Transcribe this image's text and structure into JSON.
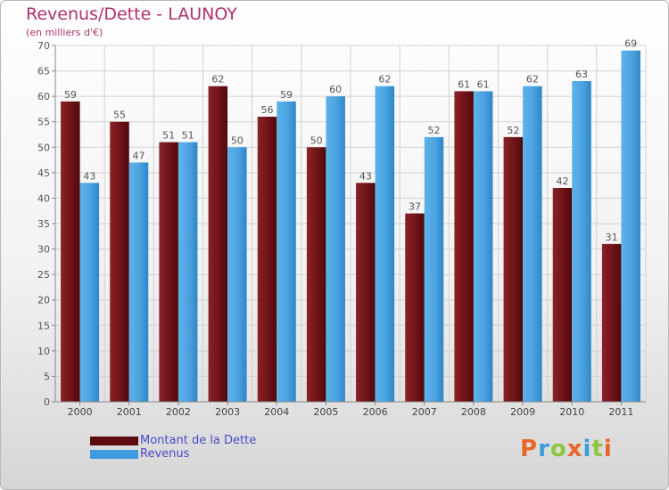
{
  "header": {
    "title": "Revenus/Dette - LAUNOY",
    "subtitle": "(en milliers d'€)"
  },
  "chart_data": {
    "type": "bar",
    "title": "Revenus/Dette - LAUNOY",
    "subtitle": "(en milliers d'€)",
    "xlabel": "",
    "ylabel": "",
    "categories": [
      "2000",
      "2001",
      "2002",
      "2003",
      "2004",
      "2005",
      "2006",
      "2007",
      "2008",
      "2009",
      "2010",
      "2011"
    ],
    "series": [
      {
        "name": "Montant de la Dette",
        "color": "#7a1518",
        "values": [
          59,
          55,
          51,
          62,
          56,
          50,
          43,
          37,
          61,
          52,
          42,
          31
        ]
      },
      {
        "name": "Revenus",
        "color": "#4aa3e0",
        "values": [
          43,
          47,
          51,
          50,
          59,
          60,
          62,
          52,
          61,
          62,
          63,
          69
        ]
      }
    ],
    "ylim": [
      0,
      70
    ],
    "ytick_step": 5,
    "yticks": [
      "0",
      "5",
      "10",
      "15",
      "20",
      "25",
      "30",
      "35",
      "40",
      "45",
      "50",
      "55",
      "60",
      "65",
      "70"
    ],
    "grid": true,
    "legend_position": "bottom-left",
    "data_labels": true
  },
  "legend": {
    "items": [
      {
        "label": "Montant de la Dette",
        "color": "#5c0a0c"
      },
      {
        "label": "Revenus",
        "color": "#3f9be0"
      }
    ]
  },
  "logo": {
    "text": "Proxiti",
    "letters": [
      {
        "ch": "P",
        "color": "#e8662a"
      },
      {
        "ch": "r",
        "color": "#3a9fd8"
      },
      {
        "ch": "o",
        "color": "#8cc63f"
      },
      {
        "ch": "x",
        "color": "#e8662a"
      },
      {
        "ch": "i",
        "color": "#3a9fd8"
      },
      {
        "ch": "t",
        "color": "#8cc63f"
      },
      {
        "ch": "i",
        "color": "#e8662a"
      }
    ]
  }
}
